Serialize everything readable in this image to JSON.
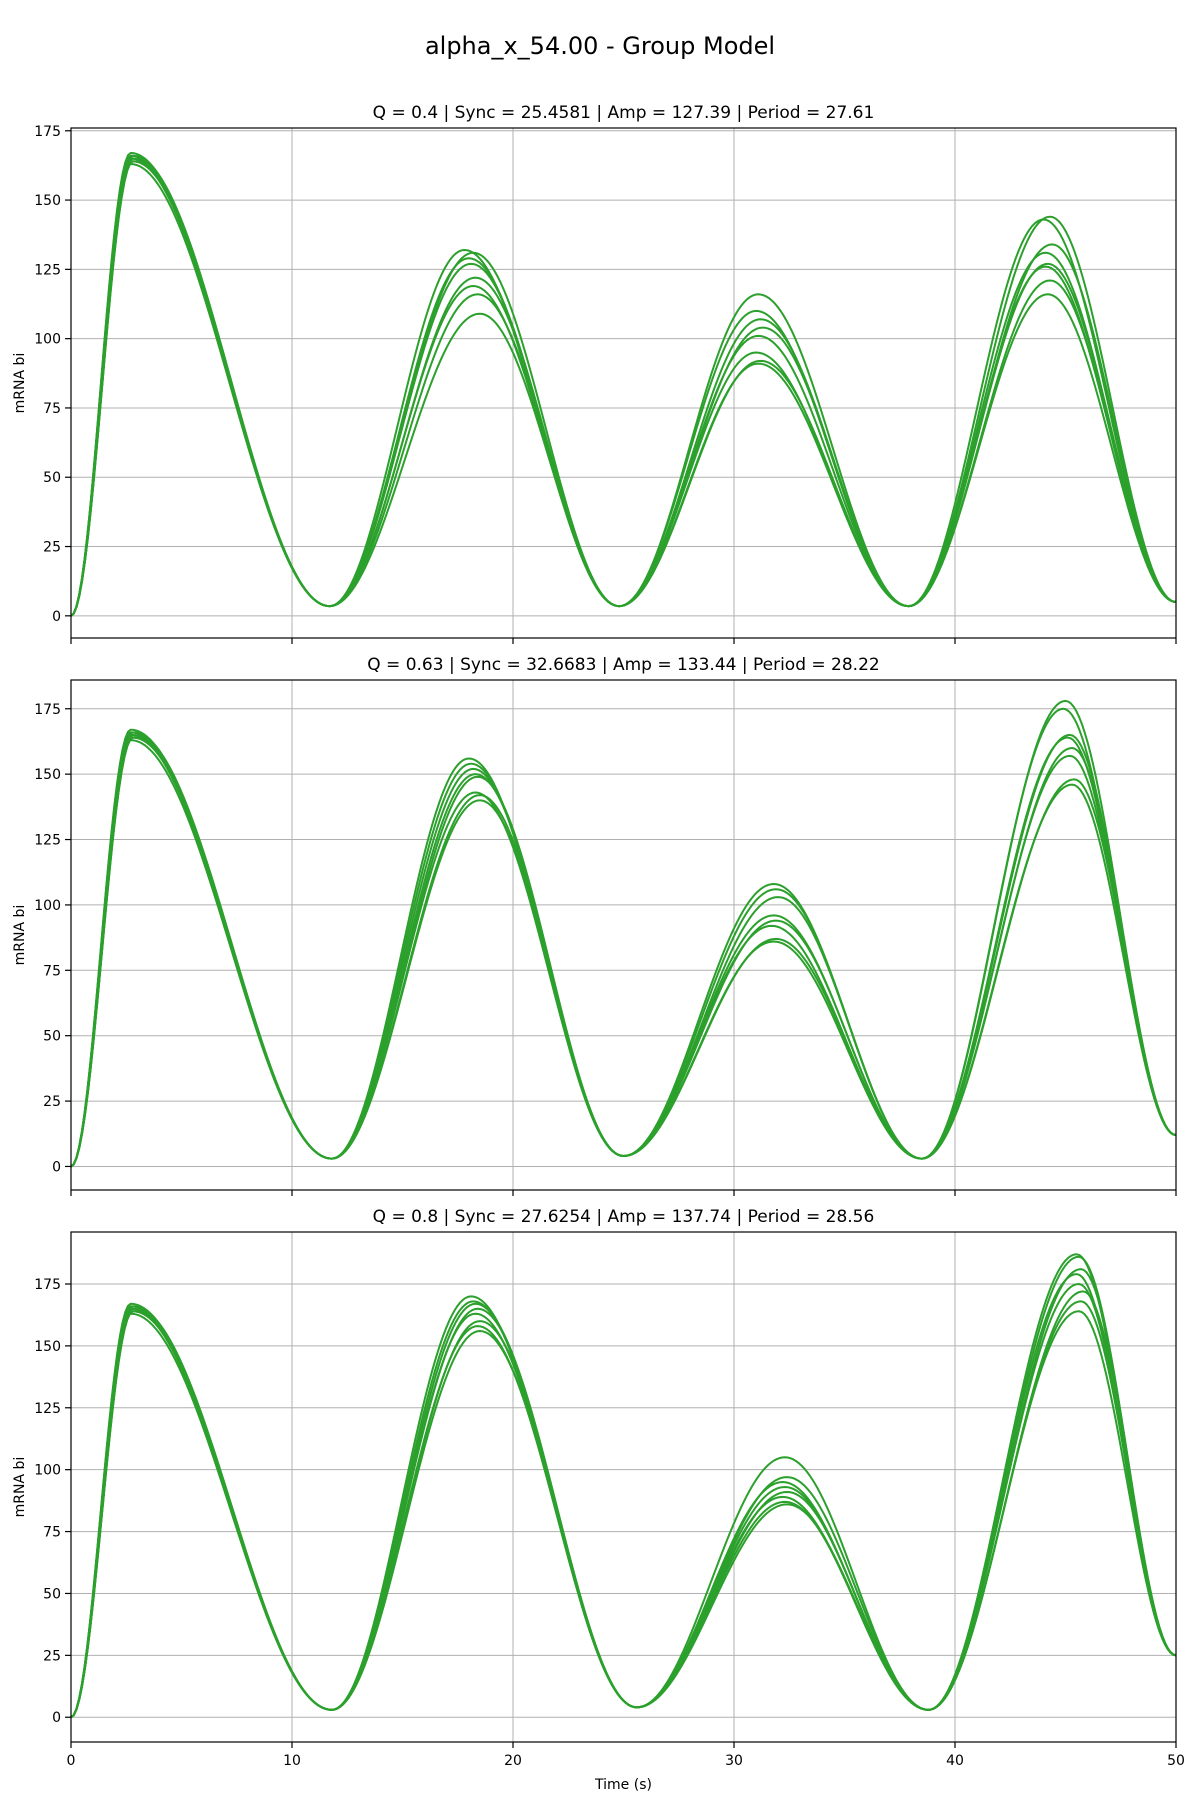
{
  "figure": {
    "suptitle": "alpha_x_54.00 - Group Model"
  },
  "chart_data": [
    {
      "type": "line",
      "title": "Q = 0.4 | Sync = 25.4581 | Amp = 127.39 | Period = 27.61",
      "xlabel": "",
      "ylabel": "mRNA bi",
      "xlim": [
        0,
        50
      ],
      "ylim": [
        -8,
        176
      ],
      "xticks": [
        0,
        10,
        20,
        30,
        40,
        50
      ],
      "xtick_labels": [
        "",
        "",
        "",
        "",
        "",
        ""
      ],
      "yticks": [
        0,
        25,
        50,
        75,
        100,
        125,
        150,
        175
      ],
      "ytick_labels": [
        "0",
        "25",
        "50",
        "75",
        "100",
        "125",
        "150",
        "175"
      ],
      "grid": true,
      "color": "#2ca02c",
      "series": [
        {
          "peaks": [
            {
              "t": 2.7,
              "v": 167
            },
            {
              "t": 17.8,
              "v": 132
            },
            {
              "t": 31.1,
              "v": 116
            },
            {
              "t": 44.3,
              "v": 144
            }
          ]
        },
        {
          "peaks": [
            {
              "t": 2.7,
              "v": 166
            },
            {
              "t": 18.0,
              "v": 129
            },
            {
              "t": 31.0,
              "v": 110
            },
            {
              "t": 44.0,
              "v": 143
            }
          ]
        },
        {
          "peaks": [
            {
              "t": 2.8,
              "v": 165
            },
            {
              "t": 18.2,
              "v": 131
            },
            {
              "t": 31.2,
              "v": 107
            },
            {
              "t": 44.1,
              "v": 131
            }
          ]
        },
        {
          "peaks": [
            {
              "t": 2.8,
              "v": 164
            },
            {
              "t": 18.1,
              "v": 127
            },
            {
              "t": 31.3,
              "v": 104
            },
            {
              "t": 44.4,
              "v": 134
            }
          ]
        },
        {
          "peaks": [
            {
              "t": 2.7,
              "v": 163
            },
            {
              "t": 18.3,
              "v": 122
            },
            {
              "t": 31.1,
              "v": 101
            },
            {
              "t": 44.2,
              "v": 127
            }
          ]
        },
        {
          "peaks": [
            {
              "t": 2.8,
              "v": 164
            },
            {
              "t": 18.2,
              "v": 119
            },
            {
              "t": 31.0,
              "v": 95
            },
            {
              "t": 44.1,
              "v": 126
            }
          ]
        },
        {
          "peaks": [
            {
              "t": 2.7,
              "v": 165
            },
            {
              "t": 18.4,
              "v": 116
            },
            {
              "t": 31.2,
              "v": 92
            },
            {
              "t": 44.3,
              "v": 121
            }
          ]
        },
        {
          "peaks": [
            {
              "t": 2.8,
              "v": 166
            },
            {
              "t": 18.5,
              "v": 109
            },
            {
              "t": 31.1,
              "v": 91
            },
            {
              "t": 44.2,
              "v": 116
            }
          ]
        }
      ],
      "troughs": [
        {
          "t": 11.7,
          "v": 3.5
        },
        {
          "t": 24.8,
          "v": 3.5
        },
        {
          "t": 37.9,
          "v": 3.5
        }
      ],
      "end_value": 5
    },
    {
      "type": "line",
      "title": "Q = 0.63 | Sync = 32.6683 | Amp = 133.44 | Period = 28.22",
      "xlabel": "",
      "ylabel": "mRNA bi",
      "xlim": [
        0,
        50
      ],
      "ylim": [
        -9,
        186
      ],
      "xticks": [
        0,
        10,
        20,
        30,
        40,
        50
      ],
      "xtick_labels": [
        "",
        "",
        "",
        "",
        "",
        ""
      ],
      "yticks": [
        0,
        25,
        50,
        75,
        100,
        125,
        150,
        175
      ],
      "ytick_labels": [
        "0",
        "25",
        "50",
        "75",
        "100",
        "125",
        "150",
        "175"
      ],
      "grid": true,
      "color": "#2ca02c",
      "series": [
        {
          "peaks": [
            {
              "t": 2.7,
              "v": 167
            },
            {
              "t": 18.0,
              "v": 156
            },
            {
              "t": 31.8,
              "v": 108
            },
            {
              "t": 45.0,
              "v": 178
            }
          ]
        },
        {
          "peaks": [
            {
              "t": 2.7,
              "v": 166
            },
            {
              "t": 18.1,
              "v": 154
            },
            {
              "t": 31.9,
              "v": 106
            },
            {
              "t": 44.9,
              "v": 175
            }
          ]
        },
        {
          "peaks": [
            {
              "t": 2.8,
              "v": 165
            },
            {
              "t": 18.2,
              "v": 152
            },
            {
              "t": 32.0,
              "v": 103
            },
            {
              "t": 45.2,
              "v": 165
            }
          ]
        },
        {
          "peaks": [
            {
              "t": 2.8,
              "v": 164
            },
            {
              "t": 18.3,
              "v": 150
            },
            {
              "t": 31.8,
              "v": 96
            },
            {
              "t": 45.1,
              "v": 164
            }
          ]
        },
        {
          "peaks": [
            {
              "t": 2.7,
              "v": 163
            },
            {
              "t": 18.4,
              "v": 149
            },
            {
              "t": 31.9,
              "v": 94
            },
            {
              "t": 45.3,
              "v": 160
            }
          ]
        },
        {
          "peaks": [
            {
              "t": 2.8,
              "v": 164
            },
            {
              "t": 18.3,
              "v": 143
            },
            {
              "t": 31.7,
              "v": 92
            },
            {
              "t": 45.2,
              "v": 157
            }
          ]
        },
        {
          "peaks": [
            {
              "t": 2.7,
              "v": 165
            },
            {
              "t": 18.5,
              "v": 142
            },
            {
              "t": 31.9,
              "v": 87
            },
            {
              "t": 45.4,
              "v": 148
            }
          ]
        },
        {
          "peaks": [
            {
              "t": 2.8,
              "v": 166
            },
            {
              "t": 18.5,
              "v": 140
            },
            {
              "t": 31.8,
              "v": 86
            },
            {
              "t": 45.3,
              "v": 146
            }
          ]
        }
      ],
      "troughs": [
        {
          "t": 11.8,
          "v": 3
        },
        {
          "t": 25.0,
          "v": 4
        },
        {
          "t": 38.5,
          "v": 3
        }
      ],
      "end_value": 12
    },
    {
      "type": "line",
      "title": "Q = 0.8 | Sync = 27.6254 | Amp = 137.74 | Period = 28.56",
      "xlabel": "Time (s)",
      "ylabel": "mRNA bi",
      "xlim": [
        0,
        50
      ],
      "ylim": [
        -10,
        196
      ],
      "xticks": [
        0,
        10,
        20,
        30,
        40,
        50
      ],
      "xtick_labels": [
        "0",
        "10",
        "20",
        "30",
        "40",
        "50"
      ],
      "yticks": [
        0,
        25,
        50,
        75,
        100,
        125,
        150,
        175
      ],
      "ytick_labels": [
        "0",
        "25",
        "50",
        "75",
        "100",
        "125",
        "150",
        "175"
      ],
      "grid": true,
      "color": "#2ca02c",
      "series": [
        {
          "peaks": [
            {
              "t": 2.7,
              "v": 167
            },
            {
              "t": 18.1,
              "v": 170
            },
            {
              "t": 32.3,
              "v": 105
            },
            {
              "t": 45.5,
              "v": 187
            }
          ]
        },
        {
          "peaks": [
            {
              "t": 2.7,
              "v": 166
            },
            {
              "t": 18.2,
              "v": 168
            },
            {
              "t": 32.4,
              "v": 97
            },
            {
              "t": 45.6,
              "v": 186
            }
          ]
        },
        {
          "peaks": [
            {
              "t": 2.8,
              "v": 165
            },
            {
              "t": 18.3,
              "v": 167
            },
            {
              "t": 32.2,
              "v": 95
            },
            {
              "t": 45.7,
              "v": 181
            }
          ]
        },
        {
          "peaks": [
            {
              "t": 2.8,
              "v": 164
            },
            {
              "t": 18.4,
              "v": 165
            },
            {
              "t": 32.3,
              "v": 93
            },
            {
              "t": 45.5,
              "v": 179
            }
          ]
        },
        {
          "peaks": [
            {
              "t": 2.7,
              "v": 163
            },
            {
              "t": 18.3,
              "v": 163
            },
            {
              "t": 32.4,
              "v": 91
            },
            {
              "t": 45.6,
              "v": 175
            }
          ]
        },
        {
          "peaks": [
            {
              "t": 2.8,
              "v": 164
            },
            {
              "t": 18.5,
              "v": 160
            },
            {
              "t": 32.2,
              "v": 89
            },
            {
              "t": 45.8,
              "v": 172
            }
          ]
        },
        {
          "peaks": [
            {
              "t": 2.7,
              "v": 165
            },
            {
              "t": 18.4,
              "v": 158
            },
            {
              "t": 32.3,
              "v": 87
            },
            {
              "t": 45.7,
              "v": 168
            }
          ]
        },
        {
          "peaks": [
            {
              "t": 2.8,
              "v": 166
            },
            {
              "t": 18.5,
              "v": 156
            },
            {
              "t": 32.4,
              "v": 86
            },
            {
              "t": 45.6,
              "v": 164
            }
          ]
        }
      ],
      "troughs": [
        {
          "t": 11.8,
          "v": 3
        },
        {
          "t": 25.6,
          "v": 4
        },
        {
          "t": 38.8,
          "v": 3
        }
      ],
      "end_value": 25
    }
  ]
}
